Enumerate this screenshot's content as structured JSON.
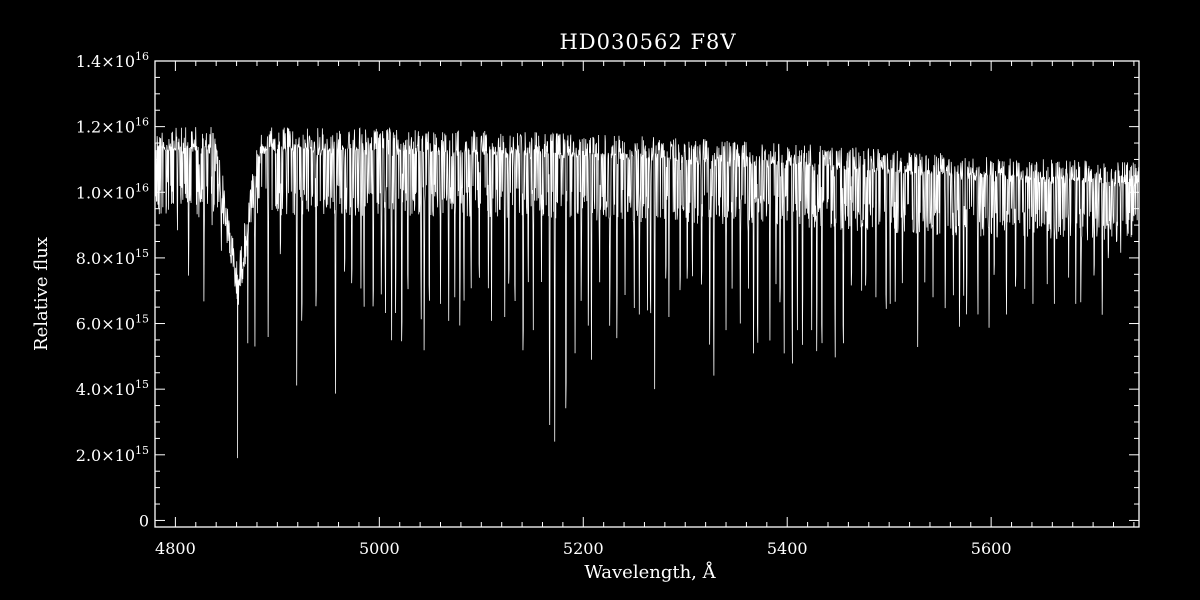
{
  "chart_data": {
    "type": "line",
    "title": "HD030562  F8V",
    "xlabel": "Wavelength, Å",
    "ylabel": "Relative flux",
    "xlim": [
      4780,
      5745
    ],
    "ylim": [
      -200000000000000.0,
      1.4e+16
    ],
    "grid": false,
    "legend": "none",
    "x_ticks": [
      {
        "value": 4800,
        "label": "4800"
      },
      {
        "value": 5000,
        "label": "5000"
      },
      {
        "value": 5200,
        "label": "5200"
      },
      {
        "value": 5400,
        "label": "5400"
      },
      {
        "value": 5600,
        "label": "5600"
      }
    ],
    "y_ticks": [
      {
        "value": 0,
        "mant": "0",
        "exp": ""
      },
      {
        "value": 2000000000000000.0,
        "mant": "2.0×10",
        "exp": "15"
      },
      {
        "value": 4000000000000000.0,
        "mant": "4.0×10",
        "exp": "15"
      },
      {
        "value": 6000000000000000.0,
        "mant": "6.0×10",
        "exp": "15"
      },
      {
        "value": 8000000000000000.0,
        "mant": "8.0×10",
        "exp": "15"
      },
      {
        "value": 1e+16,
        "mant": "1.0×10",
        "exp": "16"
      },
      {
        "value": 1.2e+16,
        "mant": "1.2×10",
        "exp": "16"
      },
      {
        "value": 1.4e+16,
        "mant": "1.4×10",
        "exp": "16"
      }
    ],
    "continuum": [
      [
        4780,
        1.2e+16
      ],
      [
        4850,
        1.2e+16
      ],
      [
        5000,
        1.195e+16
      ],
      [
        5200,
        1.18e+16
      ],
      [
        5400,
        1.15e+16
      ],
      [
        5500,
        1.13e+16
      ],
      [
        5600,
        1.11e+16
      ],
      [
        5745,
        1.09e+16
      ]
    ],
    "balmer_h_beta": {
      "center": 4861,
      "min_flux": 1900000000000000.0,
      "wing_halfwidth": 22
    },
    "absorption_lines": [
      [
        4791,
        9000000000000000.0
      ],
      [
        4802,
        8800000000000000.0
      ],
      [
        4813,
        7200000000000000.0
      ],
      [
        4823,
        9200000000000000.0
      ],
      [
        4828,
        6600000000000000.0
      ],
      [
        4836,
        9000000000000000.0
      ],
      [
        4845,
        8000000000000000.0
      ],
      [
        4855,
        8600000000000000.0
      ],
      [
        4871,
        5400000000000000.0
      ],
      [
        4878,
        5300000000000000.0
      ],
      [
        4891,
        5500000000000000.0
      ],
      [
        4903,
        7600000000000000.0
      ],
      [
        4919,
        4000000000000000.0
      ],
      [
        4924,
        5300000000000000.0
      ],
      [
        4938,
        5800000000000000.0
      ],
      [
        4957,
        3400000000000000.0
      ],
      [
        4966,
        7000000000000000.0
      ],
      [
        4973,
        6600000000000000.0
      ],
      [
        4982,
        7000000000000000.0
      ],
      [
        4985,
        6200000000000000.0
      ],
      [
        4994,
        5800000000000000.0
      ],
      [
        5002,
        6600000000000000.0
      ],
      [
        5006,
        6000000000000000.0
      ],
      [
        5012,
        5400000000000000.0
      ],
      [
        5016,
        6000000000000000.0
      ],
      [
        5022,
        4600000000000000.0
      ],
      [
        5028,
        6400000000000000.0
      ],
      [
        5041,
        5800000000000000.0
      ],
      [
        5044,
        4800000000000000.0
      ],
      [
        5049,
        6000000000000000.0
      ],
      [
        5060,
        6600000000000000.0
      ],
      [
        5068,
        6000000000000000.0
      ],
      [
        5074,
        6800000000000000.0
      ],
      [
        5079,
        5600000000000000.0
      ],
      [
        5083,
        6400000000000000.0
      ],
      [
        5090,
        6800000000000000.0
      ],
      [
        5098,
        6800000000000000.0
      ],
      [
        5107,
        6800000000000000.0
      ],
      [
        5110,
        6000000000000000.0
      ],
      [
        5123,
        6200000000000000.0
      ],
      [
        5127,
        6600000000000000.0
      ],
      [
        5133,
        6000000000000000.0
      ],
      [
        5141,
        4300000000000000.0
      ],
      [
        5146,
        7000000000000000.0
      ],
      [
        5151,
        5800000000000000.0
      ],
      [
        5159,
        7200000000000000.0
      ],
      [
        5167,
        2400000000000000.0
      ],
      [
        5172,
        2400000000000000.0
      ],
      [
        5183,
        2300000000000000.0
      ],
      [
        5192,
        5000000000000000.0
      ],
      [
        5198,
        6400000000000000.0
      ],
      [
        5205,
        5600000000000000.0
      ],
      [
        5208,
        4800000000000000.0
      ],
      [
        5216,
        7000000000000000.0
      ],
      [
        5226,
        5600000000000000.0
      ],
      [
        5233,
        5200000000000000.0
      ],
      [
        5241,
        6800000000000000.0
      ],
      [
        5250,
        6400000000000000.0
      ],
      [
        5255,
        6200000000000000.0
      ],
      [
        5263,
        6400000000000000.0
      ],
      [
        5266,
        5600000000000000.0
      ],
      [
        5270,
        4000000000000000.0
      ],
      [
        5281,
        6800000000000000.0
      ],
      [
        5284,
        6200000000000000.0
      ],
      [
        5295,
        6400000000000000.0
      ],
      [
        5302,
        6800000000000000.0
      ],
      [
        5307,
        7200000000000000.0
      ],
      [
        5316,
        6600000000000000.0
      ],
      [
        5324,
        5000000000000000.0
      ],
      [
        5328,
        4000000000000000.0
      ],
      [
        5340,
        5800000000000000.0
      ],
      [
        5346,
        7000000000000000.0
      ],
      [
        5354,
        6000000000000000.0
      ],
      [
        5362,
        7000000000000000.0
      ],
      [
        5367,
        5000000000000000.0
      ],
      [
        5371,
        4600000000000000.0
      ],
      [
        5383,
        5400000000000000.0
      ],
      [
        5389,
        7200000000000000.0
      ],
      [
        5393,
        6000000000000000.0
      ],
      [
        5397,
        5000000000000000.0
      ],
      [
        5405,
        4400000000000000.0
      ],
      [
        5410,
        5800000000000000.0
      ],
      [
        5415,
        5000000000000000.0
      ],
      [
        5424,
        5800000000000000.0
      ],
      [
        5429,
        4800000000000000.0
      ],
      [
        5434,
        4600000000000000.0
      ],
      [
        5447,
        4600000000000000.0
      ],
      [
        5455,
        4600000000000000.0
      ],
      [
        5463,
        6600000000000000.0
      ],
      [
        5473,
        7000000000000000.0
      ],
      [
        5477,
        6600000000000000.0
      ],
      [
        5487,
        6800000000000000.0
      ],
      [
        5497,
        5800000000000000.0
      ],
      [
        5501,
        6600000000000000.0
      ],
      [
        5506,
        6400000000000000.0
      ],
      [
        5513,
        7000000000000000.0
      ],
      [
        5528,
        5200000000000000.0
      ],
      [
        5535,
        7200000000000000.0
      ],
      [
        5543,
        6800000000000000.0
      ],
      [
        5555,
        6200000000000000.0
      ],
      [
        5563,
        6800000000000000.0
      ],
      [
        5569,
        5600000000000000.0
      ],
      [
        5573,
        6600000000000000.0
      ],
      [
        5576,
        6000000000000000.0
      ],
      [
        5587,
        6000000000000000.0
      ],
      [
        5598,
        5800000000000000.0
      ],
      [
        5603,
        7000000000000000.0
      ],
      [
        5615,
        6000000000000000.0
      ],
      [
        5624,
        6600000000000000.0
      ],
      [
        5633,
        7000000000000000.0
      ],
      [
        5641,
        6600000000000000.0
      ],
      [
        5655,
        7200000000000000.0
      ],
      [
        5662,
        6600000000000000.0
      ],
      [
        5676,
        7400000000000000.0
      ],
      [
        5683,
        6600000000000000.0
      ],
      [
        5688,
        6400000000000000.0
      ],
      [
        5701,
        7000000000000000.0
      ],
      [
        5709,
        6000000000000000.0
      ],
      [
        5715,
        7600000000000000.0
      ],
      [
        5727,
        8000000000000000.0
      ]
    ]
  }
}
